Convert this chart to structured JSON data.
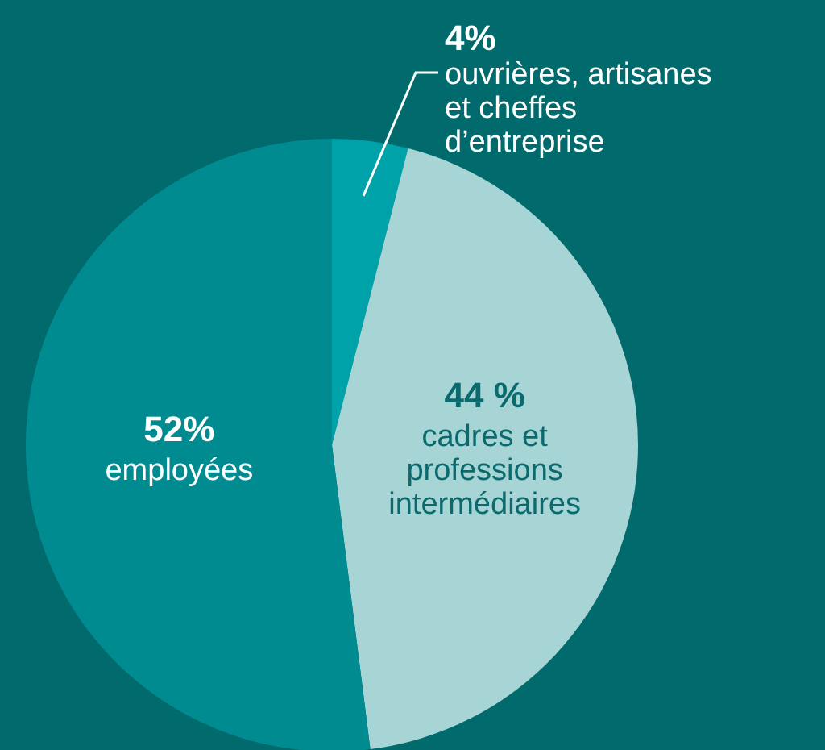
{
  "chart_data": {
    "type": "pie",
    "categories": [
      "ouvrières, artisanes et cheffes d’entreprise",
      "cadres et professions intermédiaires",
      "employées"
    ],
    "values": [
      4,
      44,
      52
    ],
    "colors": [
      "#00a2aa",
      "#a7d4d4",
      "#008b91"
    ],
    "value_labels": [
      "4%",
      "44 %",
      "52%"
    ],
    "legend": false
  }
}
